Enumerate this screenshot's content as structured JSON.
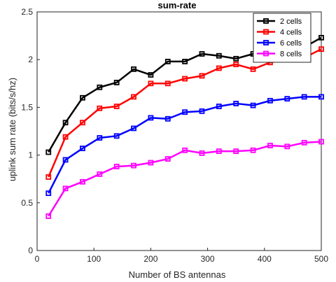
{
  "chart_data": {
    "type": "line",
    "title": "sum-rate",
    "xlabel": "Number of BS antennas",
    "ylabel": "uplink sum rate (bits/s/hz)",
    "xlim": [
      0,
      500
    ],
    "ylim": [
      0,
      2.5
    ],
    "xticks": [
      0,
      100,
      200,
      300,
      400,
      500
    ],
    "xtick_labels": [
      "0",
      "100",
      "200",
      "300",
      "400",
      "500"
    ],
    "yticks": [
      0,
      0.5,
      1,
      1.5,
      2,
      2.5
    ],
    "ytick_labels": [
      "0",
      "0.5",
      "1",
      "1.5",
      "2",
      "2.5"
    ],
    "grid": true,
    "legend_position": "top-right",
    "x": [
      20,
      50,
      80,
      110,
      140,
      170,
      200,
      230,
      260,
      290,
      320,
      350,
      380,
      410,
      440,
      470,
      500
    ],
    "series": [
      {
        "name": "2 cells",
        "color": "#000000",
        "marker": "square",
        "values": [
          1.03,
          1.34,
          1.6,
          1.71,
          1.76,
          1.9,
          1.84,
          1.98,
          1.98,
          2.06,
          2.04,
          2.01,
          2.06,
          2.1,
          2.17,
          2.13,
          2.23
        ]
      },
      {
        "name": "4 cells",
        "color": "#ff0000",
        "marker": "square",
        "values": [
          0.77,
          1.19,
          1.34,
          1.49,
          1.51,
          1.61,
          1.75,
          1.75,
          1.8,
          1.83,
          1.91,
          1.95,
          1.9,
          1.97,
          2.0,
          2.02,
          2.11
        ]
      },
      {
        "name": "6 cells",
        "color": "#0000ff",
        "marker": "square",
        "values": [
          0.6,
          0.95,
          1.07,
          1.18,
          1.2,
          1.28,
          1.39,
          1.38,
          1.45,
          1.46,
          1.51,
          1.54,
          1.52,
          1.57,
          1.59,
          1.61,
          1.61
        ]
      },
      {
        "name": "8 cells",
        "color": "#ff00ff",
        "marker": "square",
        "values": [
          0.36,
          0.65,
          0.72,
          0.8,
          0.88,
          0.89,
          0.92,
          0.96,
          1.05,
          1.02,
          1.04,
          1.04,
          1.05,
          1.1,
          1.09,
          1.13,
          1.14
        ]
      }
    ]
  }
}
